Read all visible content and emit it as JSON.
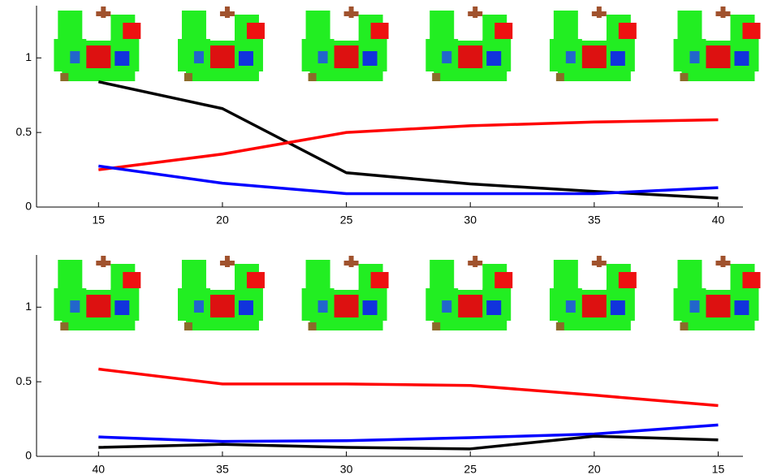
{
  "chart_data": [
    {
      "type": "line",
      "x": [
        15,
        20,
        25,
        30,
        35,
        40
      ],
      "xlim": [
        12.5,
        41
      ],
      "xticks": [
        15,
        20,
        25,
        30,
        35,
        40
      ],
      "ylim": [
        0,
        1.35
      ],
      "yticks": [
        0,
        0.5,
        1
      ],
      "series": [
        {
          "color": "#000000",
          "values": [
            0.84,
            0.66,
            0.23,
            0.155,
            0.105,
            0.06
          ]
        },
        {
          "color": "#ff0000",
          "values": [
            0.25,
            0.355,
            0.5,
            0.545,
            0.57,
            0.585
          ]
        },
        {
          "color": "#0000ff",
          "values": [
            0.275,
            0.16,
            0.09,
            0.09,
            0.09,
            0.13
          ]
        }
      ]
    },
    {
      "type": "line",
      "x": [
        40,
        35,
        30,
        25,
        20,
        15
      ],
      "xlim": [
        42.5,
        14
      ],
      "xticks": [
        40,
        35,
        30,
        25,
        20,
        15
      ],
      "ylim": [
        0,
        1.35
      ],
      "yticks": [
        0,
        0.5,
        1
      ],
      "series": [
        {
          "color": "#ff0000",
          "values": [
            0.585,
            0.485,
            0.485,
            0.475,
            0.41,
            0.34
          ]
        },
        {
          "color": "#0000ff",
          "values": [
            0.13,
            0.1,
            0.105,
            0.125,
            0.15,
            0.21
          ]
        },
        {
          "color": "#000000",
          "values": [
            0.06,
            0.08,
            0.06,
            0.05,
            0.135,
            0.11
          ]
        }
      ]
    }
  ]
}
